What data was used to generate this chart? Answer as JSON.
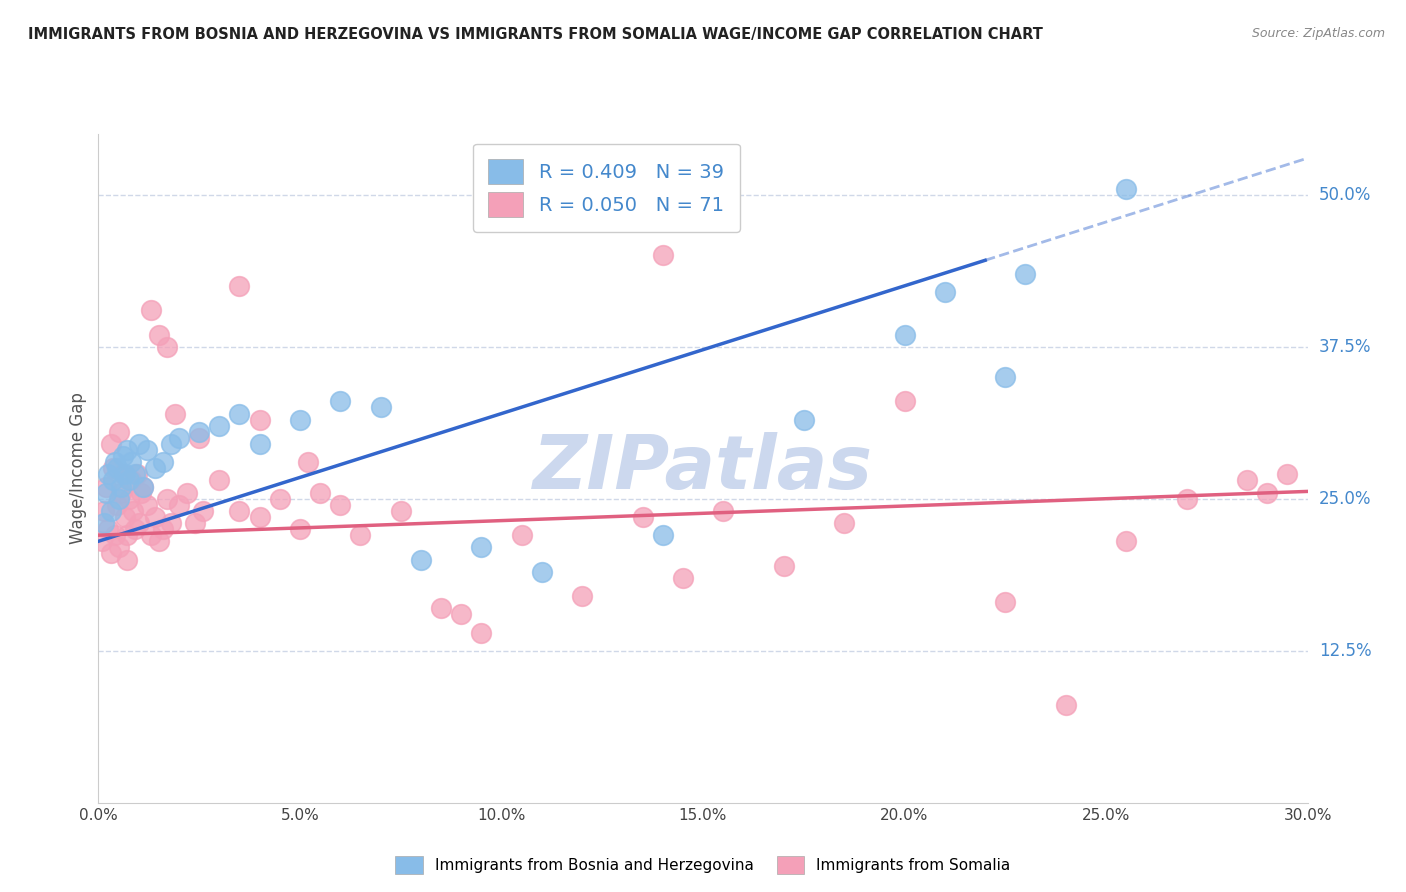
{
  "title": "IMMIGRANTS FROM BOSNIA AND HERZEGOVINA VS IMMIGRANTS FROM SOMALIA WAGE/INCOME GAP CORRELATION CHART",
  "source": "Source: ZipAtlas.com",
  "ylabel": "Wage/Income Gap",
  "x_min": 0.0,
  "x_max": 30.0,
  "y_min": 0.0,
  "y_max": 55.0,
  "x_ticks": [
    0.0,
    5.0,
    10.0,
    15.0,
    20.0,
    25.0,
    30.0
  ],
  "x_tick_labels": [
    "0.0%",
    "5.0%",
    "10.0%",
    "15.0%",
    "20.0%",
    "25.0%",
    "30.0%"
  ],
  "y_ticks_right": [
    12.5,
    25.0,
    37.5,
    50.0
  ],
  "y_tick_labels_right": [
    "12.5%",
    "25.0%",
    "37.5%",
    "50.0%"
  ],
  "legend1_label": "R = 0.409   N = 39",
  "legend2_label": "R = 0.050   N = 71",
  "scatter1_color": "#88bce8",
  "scatter2_color": "#f4a0b8",
  "line1_color": "#3366cc",
  "line2_color": "#e06080",
  "line1_solid_end": 22.0,
  "watermark": "ZIPatlas",
  "legend_label1": "Immigrants from Bosnia and Herzegovina",
  "legend_label2": "Immigrants from Somalia",
  "bosnia_x": [
    0.15,
    0.2,
    0.25,
    0.3,
    0.35,
    0.4,
    0.45,
    0.5,
    0.55,
    0.6,
    0.65,
    0.7,
    0.75,
    0.8,
    0.9,
    1.0,
    1.1,
    1.2,
    1.4,
    1.6,
    1.8,
    2.0,
    2.5,
    3.0,
    3.5,
    4.0,
    5.0,
    6.0,
    7.0,
    8.0,
    9.5,
    11.0,
    14.0,
    17.5,
    20.0,
    21.0,
    22.5,
    23.0,
    25.5
  ],
  "bosnia_y": [
    23.0,
    25.5,
    27.0,
    24.0,
    26.5,
    28.0,
    27.5,
    25.0,
    26.0,
    28.5,
    27.0,
    29.0,
    26.5,
    28.0,
    27.0,
    29.5,
    26.0,
    29.0,
    27.5,
    28.0,
    29.5,
    30.0,
    30.5,
    31.0,
    32.0,
    29.5,
    31.5,
    33.0,
    32.5,
    20.0,
    21.0,
    19.0,
    22.0,
    31.5,
    38.5,
    42.0,
    35.0,
    43.5,
    50.5
  ],
  "somalia_x": [
    0.1,
    0.15,
    0.2,
    0.25,
    0.3,
    0.35,
    0.4,
    0.45,
    0.5,
    0.55,
    0.6,
    0.65,
    0.7,
    0.75,
    0.8,
    0.85,
    0.9,
    0.95,
    1.0,
    1.05,
    1.1,
    1.2,
    1.3,
    1.4,
    1.5,
    1.6,
    1.7,
    1.8,
    2.0,
    2.2,
    2.4,
    2.6,
    3.0,
    3.5,
    4.0,
    4.5,
    5.0,
    5.5,
    6.0,
    6.5,
    7.5,
    8.5,
    9.0,
    9.5,
    10.5,
    12.0,
    13.5,
    14.5,
    15.5,
    17.0,
    18.5,
    20.0,
    22.5,
    24.0,
    25.5,
    27.0,
    28.5,
    29.0,
    29.5,
    14.0,
    1.3,
    1.5,
    3.5,
    1.7,
    1.9,
    0.5,
    0.7,
    2.5,
    0.3,
    4.0,
    5.2
  ],
  "somalia_y": [
    21.5,
    24.0,
    26.0,
    22.5,
    20.5,
    27.5,
    22.0,
    24.5,
    21.0,
    25.5,
    27.0,
    23.5,
    22.0,
    25.0,
    26.5,
    24.0,
    22.5,
    27.0,
    23.0,
    25.5,
    26.0,
    24.5,
    22.0,
    23.5,
    21.5,
    22.5,
    25.0,
    23.0,
    24.5,
    25.5,
    23.0,
    24.0,
    26.5,
    24.0,
    23.5,
    25.0,
    22.5,
    25.5,
    24.5,
    22.0,
    24.0,
    16.0,
    15.5,
    14.0,
    22.0,
    17.0,
    23.5,
    18.5,
    24.0,
    19.5,
    23.0,
    33.0,
    16.5,
    8.0,
    21.5,
    25.0,
    26.5,
    25.5,
    27.0,
    45.0,
    40.5,
    38.5,
    42.5,
    37.5,
    32.0,
    30.5,
    20.0,
    30.0,
    29.5,
    31.5,
    28.0
  ],
  "background_color": "#ffffff",
  "grid_color": "#d0d8e8",
  "title_color": "#222222",
  "watermark_color": "#ccd8ee",
  "axis_label_color": "#555555"
}
